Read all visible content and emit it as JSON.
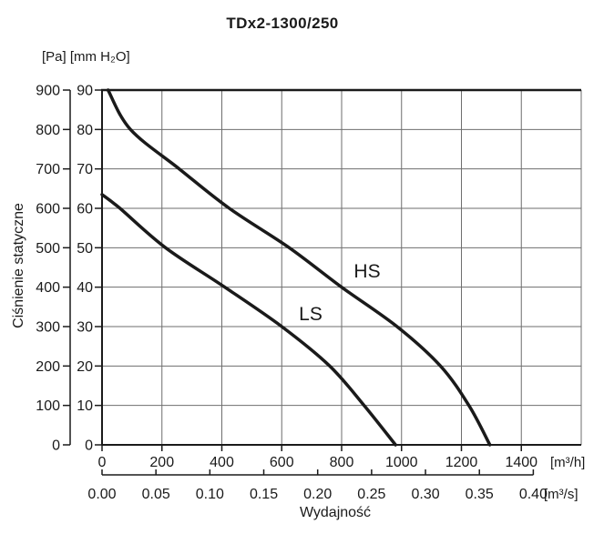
{
  "title": "TDx2-1300/250",
  "y_axis": {
    "units_label": "[Pa] [mm H₂O]",
    "axis_title": "Ciśnienie statyczne",
    "pa_ticks": [
      900,
      800,
      700,
      600,
      500,
      400,
      300,
      200,
      100,
      0
    ],
    "mm_ticks": [
      90,
      80,
      70,
      60,
      50,
      40,
      30,
      20,
      10,
      0
    ]
  },
  "x_axis": {
    "axis_title": "Wydajność",
    "m3h_ticks": [
      0,
      200,
      400,
      600,
      800,
      1000,
      1200,
      1400
    ],
    "m3h_unit": "[m³/h]",
    "m3s_ticks": [
      "0.00",
      "0.05",
      "0.10",
      "0.15",
      "0.20",
      "0.25",
      "0.30",
      "0.35",
      "0.40"
    ],
    "m3s_unit": "[m³/s]"
  },
  "colors": {
    "curve": "#1a1a1a",
    "axis": "#1a1a1a",
    "grid": "#6e6e6e"
  },
  "chart_data": {
    "type": "line",
    "title": "TDx2-1300/250",
    "xlabel": "Wydajność",
    "ylabel": "Ciśnienie statyczne",
    "x_unit_primary": "m³/h",
    "x_unit_secondary": "m³/s",
    "y_unit_primary": "Pa",
    "y_unit_secondary": "mm H₂O",
    "xlim": [
      0,
      1600
    ],
    "ylim": [
      0,
      900
    ],
    "grid": true,
    "legend_position": "inline-labels",
    "series": [
      {
        "name": "HS",
        "points": [
          [
            20,
            900
          ],
          [
            95,
            800
          ],
          [
            258,
            700
          ],
          [
            425,
            600
          ],
          [
            625,
            500
          ],
          [
            800,
            400
          ],
          [
            985,
            300
          ],
          [
            1130,
            200
          ],
          [
            1225,
            100
          ],
          [
            1295,
            0
          ]
        ]
      },
      {
        "name": "LS",
        "points": [
          [
            0,
            635
          ],
          [
            60,
            600
          ],
          [
            212,
            500
          ],
          [
            410,
            400
          ],
          [
            600,
            300
          ],
          [
            760,
            200
          ],
          [
            875,
            100
          ],
          [
            980,
            0
          ]
        ]
      }
    ]
  }
}
